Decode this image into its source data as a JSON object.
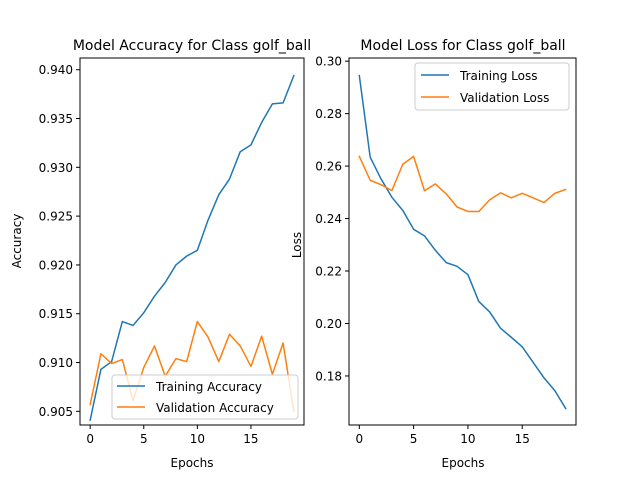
{
  "chart_data": [
    {
      "type": "line",
      "title": "Model Accuracy for Class golf_ball",
      "xlabel": "Epochs",
      "ylabel": "Accuracy",
      "xlim": [
        -0.95,
        19.95
      ],
      "ylim": [
        0.9036,
        0.9412
      ],
      "xticks": [
        0,
        5,
        10,
        15
      ],
      "yticks": [
        0.905,
        0.91,
        0.915,
        0.92,
        0.925,
        0.93,
        0.935,
        0.94
      ],
      "ytick_labels": [
        "0.905",
        "0.910",
        "0.915",
        "0.920",
        "0.925",
        "0.930",
        "0.935",
        "0.940"
      ],
      "grid": false,
      "legend_position": "lower-right",
      "x": [
        0,
        1,
        2,
        3,
        4,
        5,
        6,
        7,
        8,
        9,
        10,
        11,
        12,
        13,
        14,
        15,
        16,
        17,
        18,
        19
      ],
      "series": [
        {
          "name": "Training Accuracy",
          "color": "#1f77b4",
          "values": [
            0.9041,
            0.9093,
            0.9101,
            0.9142,
            0.9138,
            0.9151,
            0.9168,
            0.9182,
            0.92,
            0.9209,
            0.9215,
            0.9246,
            0.9272,
            0.9288,
            0.9316,
            0.9323,
            0.9346,
            0.9365,
            0.9366,
            0.9394
          ]
        },
        {
          "name": "Validation Accuracy",
          "color": "#ff7f0e",
          "values": [
            0.9057,
            0.9109,
            0.9099,
            0.9103,
            0.9061,
            0.9095,
            0.9117,
            0.9086,
            0.9104,
            0.9101,
            0.9142,
            0.9126,
            0.9101,
            0.9129,
            0.9117,
            0.9096,
            0.9127,
            0.9088,
            0.912,
            0.905
          ]
        }
      ]
    },
    {
      "type": "line",
      "title": "Model Loss for Class golf_ball",
      "xlabel": "Epochs",
      "ylabel": "Loss",
      "xlim": [
        -0.95,
        19.95
      ],
      "ylim": [
        0.1613,
        0.3012
      ],
      "xticks": [
        0,
        5,
        10,
        15
      ],
      "yticks": [
        0.18,
        0.2,
        0.22,
        0.24,
        0.26,
        0.28,
        0.3
      ],
      "ytick_labels": [
        "0.18",
        "0.20",
        "0.22",
        "0.24",
        "0.26",
        "0.28",
        "0.30"
      ],
      "grid": false,
      "legend_position": "upper-right",
      "x": [
        0,
        1,
        2,
        3,
        4,
        5,
        6,
        7,
        8,
        9,
        10,
        11,
        12,
        13,
        14,
        15,
        16,
        17,
        18,
        19
      ],
      "series": [
        {
          "name": "Training Loss",
          "color": "#1f77b4",
          "values": [
            0.2945,
            0.2634,
            0.2551,
            0.2481,
            0.2431,
            0.2359,
            0.2334,
            0.2279,
            0.2232,
            0.2218,
            0.2186,
            0.2084,
            0.2044,
            0.1982,
            0.1947,
            0.1911,
            0.1852,
            0.1793,
            0.1744,
            0.1676
          ]
        },
        {
          "name": "Validation Loss",
          "color": "#ff7f0e",
          "values": [
            0.2637,
            0.2546,
            0.2529,
            0.2507,
            0.2607,
            0.2637,
            0.2506,
            0.2532,
            0.2494,
            0.2444,
            0.2427,
            0.2427,
            0.2471,
            0.2498,
            0.2479,
            0.2496,
            0.2479,
            0.2461,
            0.2496,
            0.2511
          ]
        }
      ]
    }
  ]
}
